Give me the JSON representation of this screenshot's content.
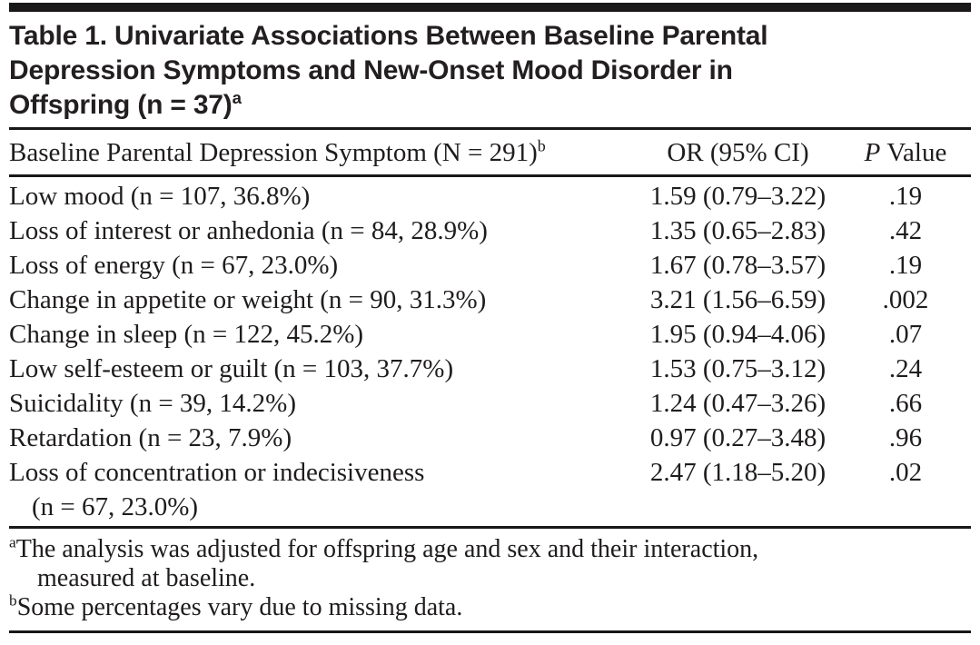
{
  "colors": {
    "ink": "#231f20",
    "rule": "#1a1718",
    "background": "#ffffff"
  },
  "table": {
    "title": {
      "lines": [
        "Table 1. Univariate Associations Between Baseline Parental",
        "Depression Symptoms and New-Onset Mood Disorder in",
        "Offspring (n = 37)"
      ],
      "title_superscript": "a"
    },
    "columns": {
      "symptom": {
        "label": "Baseline Parental Depression Symptom (N = 291)",
        "superscript": "b"
      },
      "or_ci": {
        "label": "OR (95% CI)"
      },
      "p_value": {
        "label_italic": "P",
        "label_rest": "Value"
      }
    },
    "rows": [
      {
        "symptom": "Low mood (n = 107, 36.8%)",
        "symptom_line2": "",
        "or_ci": "1.59 (0.79–3.22)",
        "p_value": ".19"
      },
      {
        "symptom": "Loss of interest or anhedonia (n = 84, 28.9%)",
        "symptom_line2": "",
        "or_ci": "1.35 (0.65–2.83)",
        "p_value": ".42"
      },
      {
        "symptom": "Loss of energy (n = 67, 23.0%)",
        "symptom_line2": "",
        "or_ci": "1.67 (0.78–3.57)",
        "p_value": ".19"
      },
      {
        "symptom": "Change in appetite or weight (n = 90, 31.3%)",
        "symptom_line2": "",
        "or_ci": "3.21 (1.56–6.59)",
        "p_value": ".002"
      },
      {
        "symptom": "Change in sleep (n = 122, 45.2%)",
        "symptom_line2": "",
        "or_ci": "1.95 (0.94–4.06)",
        "p_value": ".07"
      },
      {
        "symptom": "Low self-esteem or guilt (n = 103, 37.7%)",
        "symptom_line2": "",
        "or_ci": "1.53 (0.75–3.12)",
        "p_value": ".24"
      },
      {
        "symptom": "Suicidality (n = 39, 14.2%)",
        "symptom_line2": "",
        "or_ci": "1.24 (0.47–3.26)",
        "p_value": ".66"
      },
      {
        "symptom": "Retardation (n = 23, 7.9%)",
        "symptom_line2": "",
        "or_ci": "0.97 (0.27–3.48)",
        "p_value": ".96"
      },
      {
        "symptom": "Loss of concentration or indecisiveness",
        "symptom_line2": "(n = 67, 23.0%)",
        "or_ci": "2.47 (1.18–5.20)",
        "p_value": ".02"
      }
    ],
    "footnotes": [
      {
        "marker": "a",
        "line1": "The analysis was adjusted for offspring age and sex and their interaction,",
        "line2": "measured at baseline."
      },
      {
        "marker": "b",
        "line1": "Some percentages vary due to missing data.",
        "line2": ""
      }
    ]
  }
}
